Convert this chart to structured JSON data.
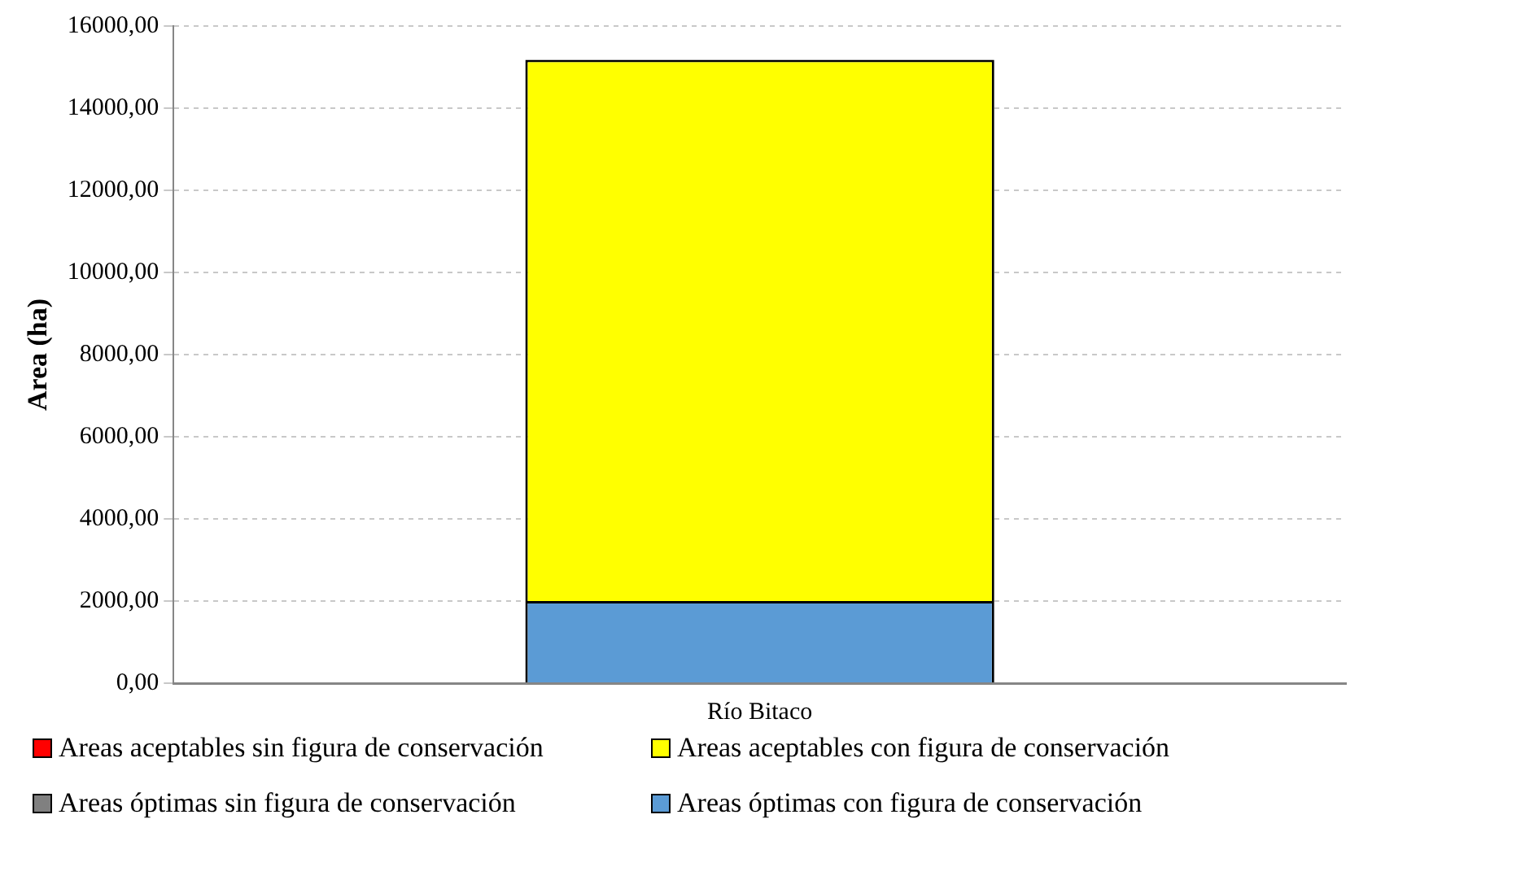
{
  "chart_data": {
    "type": "bar",
    "stacked": true,
    "ylabel": "Area (ha)",
    "categories": [
      "Río Bitaco"
    ],
    "series": [
      {
        "name": "Areas óptimas con figura de conservación",
        "color": "#5b9bd5",
        "values": [
          2000
        ]
      },
      {
        "name": "Areas óptimas sin figura de conservación",
        "color": "#808080",
        "values": [
          0
        ]
      },
      {
        "name": "Areas aceptables con figura de conservación",
        "color": "#ffff00",
        "values": [
          13180
        ]
      },
      {
        "name": "Areas aceptables sin figura de conservación",
        "color": "#ff0000",
        "values": [
          0
        ]
      }
    ],
    "ylim": [
      0,
      16000
    ],
    "yticks": [
      {
        "value": 0,
        "label": "0,00"
      },
      {
        "value": 2000,
        "label": "2000,00"
      },
      {
        "value": 4000,
        "label": "4000,00"
      },
      {
        "value": 6000,
        "label": "6000,00"
      },
      {
        "value": 8000,
        "label": "8000,00"
      },
      {
        "value": 10000,
        "label": "10000,00"
      },
      {
        "value": 12000,
        "label": "12000,00"
      },
      {
        "value": 14000,
        "label": "14000,00"
      },
      {
        "value": 16000,
        "label": "16000,00"
      }
    ],
    "grid": "y",
    "legend": "bottom"
  }
}
